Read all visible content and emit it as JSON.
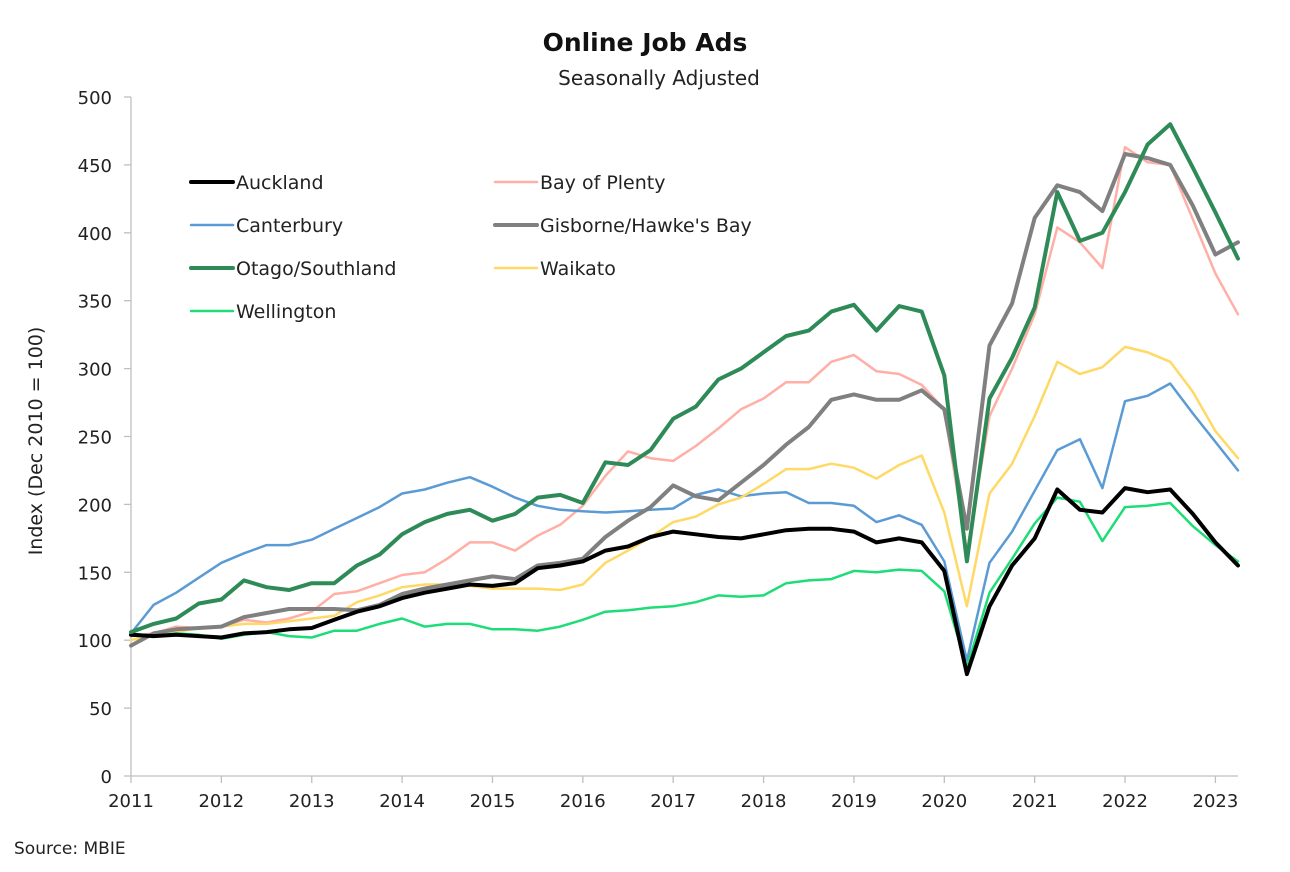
{
  "chart_data": {
    "type": "line",
    "title": "Online Job Ads",
    "subtitle": "Seasonally Adjusted",
    "xlabel": "",
    "ylabel": "Index (Dec 2010 = 100)",
    "source": "Source: MBIE",
    "ylim": [
      0,
      500
    ],
    "yticks": [
      0,
      50,
      100,
      150,
      200,
      250,
      300,
      350,
      400,
      450,
      500
    ],
    "x_start": 2011,
    "x_step": 0.25,
    "xlim": [
      2011,
      2023.25
    ],
    "xticks": [
      2011,
      2012,
      2013,
      2014,
      2015,
      2016,
      2017,
      2018,
      2019,
      2020,
      2021,
      2022,
      2023
    ],
    "grid": false,
    "legend_position": "top-left",
    "series": [
      {
        "name": "Auckland",
        "color": "#000000",
        "width": 4,
        "values": [
          104,
          103,
          104,
          103,
          102,
          105,
          106,
          108,
          109,
          115,
          121,
          125,
          131,
          135,
          138,
          141,
          140,
          142,
          153,
          155,
          158,
          166,
          169,
          176,
          180,
          178,
          176,
          175,
          178,
          181,
          182,
          182,
          180,
          172,
          175,
          172,
          151,
          75,
          125,
          155,
          175,
          211,
          196,
          194,
          212,
          209,
          211,
          193,
          172,
          155
        ]
      },
      {
        "name": "Bay of Plenty",
        "color": "#FFAFA6",
        "width": 2.5,
        "values": [
          103,
          105,
          110,
          109,
          110,
          115,
          113,
          116,
          121,
          134,
          136,
          142,
          148,
          150,
          160,
          172,
          172,
          166,
          177,
          185,
          199,
          221,
          239,
          234,
          232,
          243,
          256,
          270,
          278,
          290,
          290,
          305,
          310,
          298,
          296,
          288,
          270,
          165,
          265,
          300,
          340,
          404,
          393,
          374,
          463,
          452,
          450,
          410,
          370,
          340
        ]
      },
      {
        "name": "Canterbury",
        "color": "#5B9BD5",
        "width": 2.5,
        "values": [
          105,
          126,
          135,
          146,
          157,
          164,
          170,
          170,
          174,
          182,
          190,
          198,
          208,
          211,
          216,
          220,
          213,
          205,
          199,
          196,
          195,
          194,
          195,
          196,
          197,
          207,
          211,
          206,
          208,
          209,
          201,
          201,
          199,
          187,
          192,
          185,
          158,
          85,
          157,
          180,
          210,
          240,
          248,
          212,
          276,
          280,
          289,
          267,
          246,
          225
        ]
      },
      {
        "name": "Gisborne/Hawke's Bay",
        "color": "#808080",
        "width": 4,
        "values": [
          96,
          105,
          108,
          109,
          110,
          117,
          120,
          123,
          123,
          123,
          122,
          126,
          134,
          138,
          141,
          144,
          147,
          145,
          155,
          157,
          160,
          176,
          188,
          198,
          214,
          206,
          203,
          216,
          229,
          244,
          257,
          277,
          281,
          277,
          277,
          284,
          270,
          182,
          317,
          348,
          411,
          435,
          430,
          416,
          458,
          455,
          450,
          420,
          384,
          393
        ]
      },
      {
        "name": "Otago/Southland",
        "color": "#2E8B57",
        "width": 4,
        "values": [
          106,
          112,
          116,
          127,
          130,
          144,
          139,
          137,
          142,
          142,
          155,
          163,
          178,
          187,
          193,
          196,
          188,
          193,
          205,
          207,
          201,
          231,
          229,
          240,
          263,
          272,
          292,
          300,
          312,
          324,
          328,
          342,
          347,
          328,
          346,
          342,
          295,
          158,
          278,
          308,
          345,
          430,
          394,
          400,
          430,
          465,
          480,
          448,
          415,
          381
        ]
      },
      {
        "name": "Waikato",
        "color": "#FFD966",
        "width": 2.5,
        "values": [
          100,
          104,
          106,
          109,
          110,
          112,
          112,
          114,
          116,
          118,
          128,
          133,
          139,
          141,
          141,
          140,
          138,
          138,
          138,
          137,
          141,
          157,
          166,
          176,
          187,
          191,
          200,
          205,
          215,
          226,
          226,
          230,
          227,
          219,
          229,
          236,
          194,
          125,
          208,
          230,
          265,
          305,
          296,
          301,
          316,
          312,
          305,
          283,
          254,
          234
        ]
      },
      {
        "name": "Wellington",
        "color": "#1EDD78",
        "width": 2.5,
        "values": [
          105,
          103,
          105,
          104,
          101,
          104,
          106,
          103,
          102,
          107,
          107,
          112,
          116,
          110,
          112,
          112,
          108,
          108,
          107,
          110,
          115,
          121,
          122,
          124,
          125,
          128,
          133,
          132,
          133,
          142,
          144,
          145,
          151,
          150,
          152,
          151,
          136,
          80,
          135,
          160,
          186,
          205,
          202,
          173,
          198,
          199,
          201,
          184,
          170,
          158
        ]
      }
    ]
  }
}
